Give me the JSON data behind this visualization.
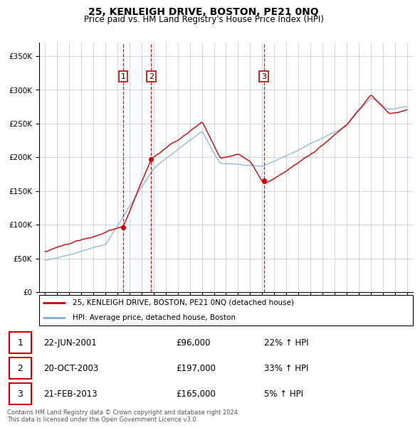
{
  "title": "25, KENLEIGH DRIVE, BOSTON, PE21 0NQ",
  "subtitle": "Price paid vs. HM Land Registry's House Price Index (HPI)",
  "legend_line1": "25, KENLEIGH DRIVE, BOSTON, PE21 0NQ (detached house)",
  "legend_line2": "HPI: Average price, detached house, Boston",
  "transactions": [
    {
      "num": 1,
      "date": "22-JUN-2001",
      "price": "£96,000",
      "change": "22% ↑ HPI",
      "year": 2001.47
    },
    {
      "num": 2,
      "date": "20-OCT-2003",
      "price": "£197,000",
      "change": "33% ↑ HPI",
      "year": 2003.8
    },
    {
      "num": 3,
      "date": "21-FEB-2013",
      "price": "£165,000",
      "change": "5% ↑ HPI",
      "year": 2013.13
    }
  ],
  "transaction_values": [
    96000,
    197000,
    165000
  ],
  "transaction_years": [
    2001.47,
    2003.8,
    2013.13
  ],
  "footer": "Contains HM Land Registry data © Crown copyright and database right 2024.\nThis data is licensed under the Open Government Licence v3.0.",
  "red_color": "#cc0000",
  "blue_color": "#7bafd4",
  "shade_color": "#ddeeff",
  "vline_color": "#cc0000",
  "ylim": [
    0,
    370000
  ],
  "yticks": [
    0,
    50000,
    100000,
    150000,
    200000,
    250000,
    300000,
    350000
  ],
  "xmin": 1994.5,
  "xmax": 2025.5
}
